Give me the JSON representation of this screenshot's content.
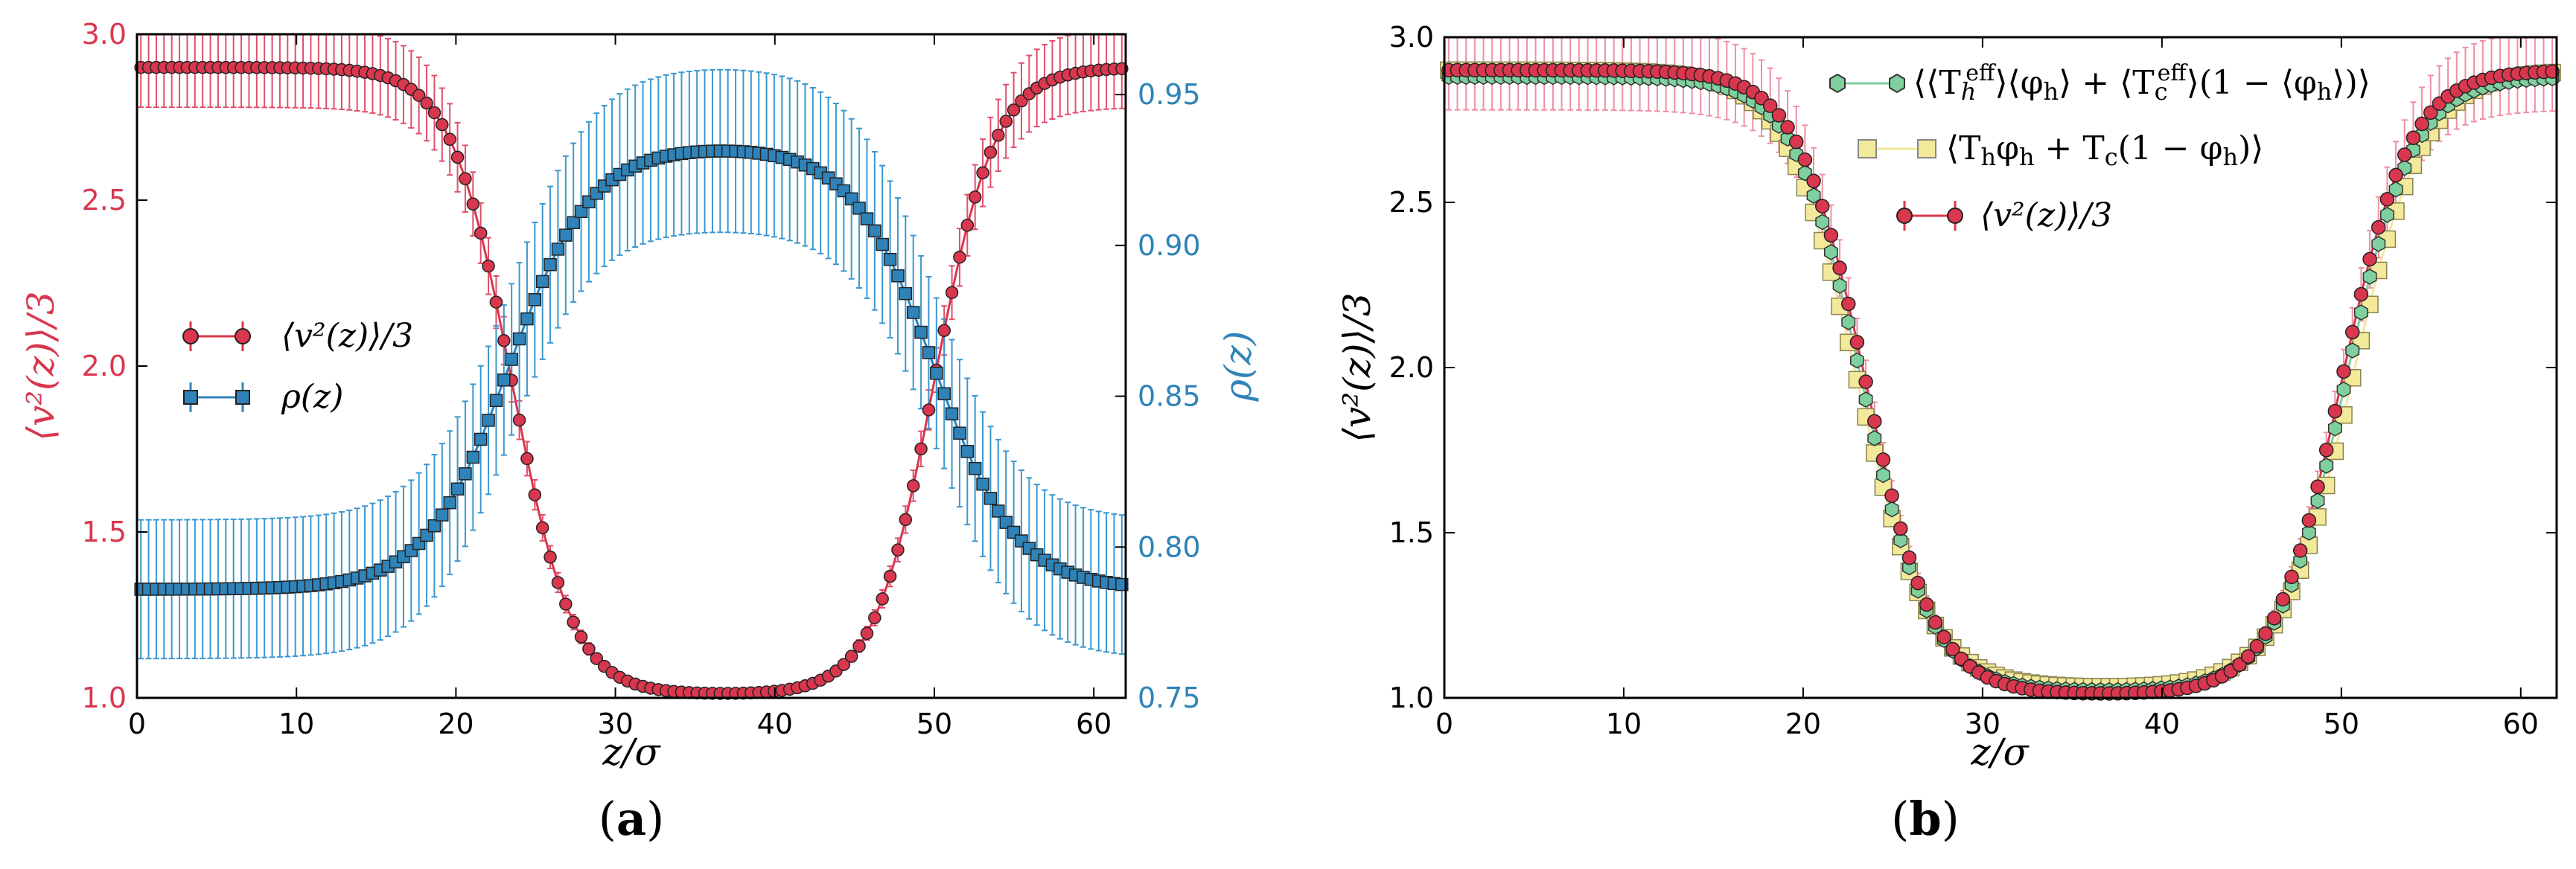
{
  "chart_data": [
    {
      "panel": "a",
      "type": "line",
      "caption_letter": "a",
      "xlabel": "z/σ",
      "ylabel_left": "⟨v²(z)⟩/3",
      "ylabel_right": "ρ(z)",
      "xlim": [
        0,
        62
      ],
      "ylim_left": [
        1.0,
        3.0
      ],
      "ylim_right": [
        0.75,
        0.97
      ],
      "xticks": [
        "0",
        "10",
        "20",
        "30",
        "40",
        "50",
        "60"
      ],
      "yticks_left": [
        "1.0",
        "1.5",
        "2.0",
        "2.5",
        "3.0"
      ],
      "yticks_right": [
        "0.75",
        "0.80",
        "0.85",
        "0.90",
        "0.95"
      ],
      "legend_position": "center-left",
      "series": [
        {
          "name": "⟨v²(z)⟩/3",
          "axis": "left",
          "marker": "circle",
          "color": "#d9374e",
          "error_color": "#e0506a",
          "profile": {
            "shape": "well",
            "high": 2.9,
            "low": 1.01,
            "center_left": 23.5,
            "center_right": 50.0,
            "width": 1.9
          },
          "error": {
            "outer": 0.12,
            "inner": 0.01
          }
        },
        {
          "name": "ρ(z)",
          "axis": "right",
          "marker": "square",
          "color": "#2f83b8",
          "error_color": "#3b97d0",
          "profile": {
            "shape": "bump",
            "high": 0.933,
            "low": 0.786,
            "center_left": 23.3,
            "center_right": 50.0,
            "width": 2.6
          },
          "error": {
            "outer": 0.023,
            "inner": 0.027
          }
        }
      ],
      "legend_labels": {
        "v2": "⟨v²(z)⟩/3",
        "rho": "ρ(z)"
      }
    },
    {
      "panel": "b",
      "type": "line",
      "caption_letter": "b",
      "xlabel": "z/σ",
      "ylabel": "⟨v²(z)⟩/3",
      "xlim": [
        0,
        62
      ],
      "ylim": [
        1.0,
        3.0
      ],
      "xticks": [
        "0",
        "10",
        "20",
        "30",
        "40",
        "50",
        "60"
      ],
      "yticks": [
        "1.0",
        "1.5",
        "2.0",
        "2.5",
        "3.0"
      ],
      "legend_position": "top-right",
      "series": [
        {
          "name": "⟨⟨T_h^eff⟩⟨φ_h⟩ + ⟨T_c^eff⟩(1 − ⟨φ_h⟩)⟩",
          "marker": "hexagon",
          "color": "#7fcf9f",
          "profile": {
            "shape": "well",
            "high": 2.88,
            "low": 1.02,
            "center_left": 23.3,
            "center_right": 50.2,
            "width": 1.9
          }
        },
        {
          "name": "⟨T_h φ_h + T_c(1 − φ_h)⟩",
          "marker": "square",
          "color": "#f3e99a",
          "profile": {
            "shape": "well",
            "high": 2.9,
            "low": 1.03,
            "center_left": 23.0,
            "center_right": 50.6,
            "width": 2.0
          }
        },
        {
          "name": "⟨v²(z)⟩/3",
          "marker": "circle",
          "color": "#d9374e",
          "error_color": "#ef8fa3",
          "profile": {
            "shape": "well",
            "high": 2.9,
            "low": 1.01,
            "center_left": 23.5,
            "center_right": 50.0,
            "width": 1.9
          },
          "error": {
            "outer": 0.12,
            "inner": 0.01
          }
        }
      ],
      "legend_labels": {
        "s1_main": "⟨⟨T",
        "s1_sub1": "h",
        "s1_sup1": "eff",
        "s1_mid": "⟩⟨φ",
        "s1_sub2": "h",
        "s1_mid2": "⟩ + ⟨T",
        "s1_sub3": "c",
        "s1_sup3": "eff",
        "s1_end1": "⟩(1 − ⟨φ",
        "s1_sub4": "h",
        "s1_end2": "⟩)⟩",
        "s2_a": "⟨T",
        "s2_sub1": "h",
        "s2_b": "φ",
        "s2_sub2": "h",
        "s2_c": " + T",
        "s2_sub3": "c",
        "s2_d": "(1 − φ",
        "s2_sub4": "h",
        "s2_e": ")⟩",
        "s3": "⟨v²(z)⟩/3"
      }
    }
  ],
  "captions": {
    "a_open": "(",
    "a_letter": "a",
    "a_close": ")",
    "b_open": "(",
    "b_letter": "b",
    "b_close": ")"
  }
}
